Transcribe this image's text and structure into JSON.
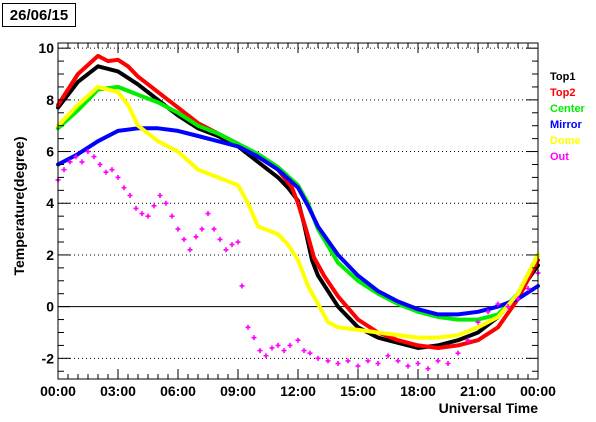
{
  "header": {
    "date": "26/06/15"
  },
  "chart_data": {
    "type": "line",
    "xlabel": "Universal Time",
    "ylabel": "Temperature(degree)",
    "xlim": [
      0,
      24
    ],
    "ylim": [
      -2.8,
      10.2
    ],
    "x_ticks": [
      {
        "value": 0,
        "label": "00:00"
      },
      {
        "value": 3,
        "label": "03:00"
      },
      {
        "value": 6,
        "label": "06:00"
      },
      {
        "value": 9,
        "label": "09:00"
      },
      {
        "value": 12,
        "label": "12:00"
      },
      {
        "value": 15,
        "label": "15:00"
      },
      {
        "value": 18,
        "label": "18:00"
      },
      {
        "value": 21,
        "label": "21:00"
      },
      {
        "value": 24,
        "label": "00:00"
      }
    ],
    "y_ticks": [
      {
        "value": -2,
        "label": "-2"
      },
      {
        "value": 0,
        "label": "0"
      },
      {
        "value": 2,
        "label": "2"
      },
      {
        "value": 4,
        "label": "4"
      },
      {
        "value": 6,
        "label": "6"
      },
      {
        "value": 8,
        "label": "8"
      },
      {
        "value": 10,
        "label": "10"
      }
    ],
    "grid": "horizontal dotted",
    "legend_position": "right",
    "series": [
      {
        "name": "Top1",
        "color": "#000000",
        "style": "line",
        "points": [
          [
            0,
            7.7
          ],
          [
            1,
            8.7
          ],
          [
            2,
            9.3
          ],
          [
            3,
            9.1
          ],
          [
            4,
            8.6
          ],
          [
            5,
            8.0
          ],
          [
            6,
            7.4
          ],
          [
            7,
            6.9
          ],
          [
            8,
            6.6
          ],
          [
            9,
            6.2
          ],
          [
            10,
            5.6
          ],
          [
            11,
            5.0
          ],
          [
            11.5,
            4.6
          ],
          [
            12,
            4.1
          ],
          [
            12.3,
            3.2
          ],
          [
            12.7,
            1.8
          ],
          [
            13,
            1.2
          ],
          [
            14,
            0.0
          ],
          [
            15,
            -0.8
          ],
          [
            16,
            -1.2
          ],
          [
            17,
            -1.4
          ],
          [
            18,
            -1.6
          ],
          [
            19,
            -1.5
          ],
          [
            20,
            -1.3
          ],
          [
            21,
            -1.0
          ],
          [
            22,
            -0.4
          ],
          [
            23,
            0.5
          ],
          [
            24,
            1.6
          ]
        ]
      },
      {
        "name": "Top2",
        "color": "#ff0000",
        "style": "line",
        "points": [
          [
            0,
            7.8
          ],
          [
            1,
            9.0
          ],
          [
            2,
            9.7
          ],
          [
            2.5,
            9.5
          ],
          [
            3,
            9.55
          ],
          [
            3.5,
            9.3
          ],
          [
            4,
            8.9
          ],
          [
            5,
            8.3
          ],
          [
            6,
            7.7
          ],
          [
            7,
            7.1
          ],
          [
            8,
            6.7
          ],
          [
            9,
            6.3
          ],
          [
            10,
            5.8
          ],
          [
            11,
            5.3
          ],
          [
            11.7,
            4.6
          ],
          [
            12,
            4.0
          ],
          [
            12.4,
            3.0
          ],
          [
            12.8,
            1.9
          ],
          [
            13.3,
            1.2
          ],
          [
            14,
            0.4
          ],
          [
            15,
            -0.5
          ],
          [
            16,
            -1.0
          ],
          [
            17,
            -1.3
          ],
          [
            18,
            -1.5
          ],
          [
            19,
            -1.6
          ],
          [
            20,
            -1.5
          ],
          [
            21,
            -1.3
          ],
          [
            22,
            -0.8
          ],
          [
            23,
            0.3
          ],
          [
            24,
            1.8
          ]
        ]
      },
      {
        "name": "Center",
        "color": "#00ee00",
        "style": "line",
        "points": [
          [
            0,
            6.9
          ],
          [
            1,
            7.6
          ],
          [
            2,
            8.4
          ],
          [
            3,
            8.5
          ],
          [
            4,
            8.2
          ],
          [
            5,
            7.9
          ],
          [
            6,
            7.5
          ],
          [
            7,
            7.0
          ],
          [
            8,
            6.7
          ],
          [
            9,
            6.3
          ],
          [
            10,
            5.9
          ],
          [
            11,
            5.4
          ],
          [
            12,
            4.7
          ],
          [
            12.5,
            4.0
          ],
          [
            13,
            3.0
          ],
          [
            14,
            1.7
          ],
          [
            15,
            1.0
          ],
          [
            16,
            0.5
          ],
          [
            17,
            0.1
          ],
          [
            18,
            -0.2
          ],
          [
            19,
            -0.4
          ],
          [
            20,
            -0.5
          ],
          [
            21,
            -0.5
          ],
          [
            22,
            -0.3
          ],
          [
            23,
            0.5
          ],
          [
            24,
            2.0
          ]
        ]
      },
      {
        "name": "Mirror",
        "color": "#0000ff",
        "style": "line",
        "points": [
          [
            0,
            5.5
          ],
          [
            1,
            5.9
          ],
          [
            2,
            6.4
          ],
          [
            3,
            6.8
          ],
          [
            4,
            6.9
          ],
          [
            5,
            6.9
          ],
          [
            6,
            6.8
          ],
          [
            7,
            6.6
          ],
          [
            8,
            6.4
          ],
          [
            9,
            6.2
          ],
          [
            10,
            5.8
          ],
          [
            11,
            5.3
          ],
          [
            12,
            4.6
          ],
          [
            12.5,
            3.9
          ],
          [
            13,
            3.1
          ],
          [
            14,
            2.0
          ],
          [
            15,
            1.2
          ],
          [
            16,
            0.6
          ],
          [
            17,
            0.2
          ],
          [
            18,
            -0.1
          ],
          [
            19,
            -0.3
          ],
          [
            20,
            -0.3
          ],
          [
            21,
            -0.2
          ],
          [
            22,
            0.0
          ],
          [
            23,
            0.3
          ],
          [
            24,
            0.8
          ]
        ]
      },
      {
        "name": "Dome",
        "color": "#ffff00",
        "style": "line",
        "points": [
          [
            0,
            7.0
          ],
          [
            1,
            7.8
          ],
          [
            2,
            8.5
          ],
          [
            3,
            8.3
          ],
          [
            3.5,
            7.8
          ],
          [
            4,
            7.0
          ],
          [
            5,
            6.4
          ],
          [
            6,
            6.0
          ],
          [
            7,
            5.3
          ],
          [
            8,
            5.0
          ],
          [
            9,
            4.7
          ],
          [
            9.5,
            4.0
          ],
          [
            10,
            3.1
          ],
          [
            11,
            2.8
          ],
          [
            11.5,
            2.4
          ],
          [
            12,
            1.8
          ],
          [
            12.5,
            0.8
          ],
          [
            13,
            0.1
          ],
          [
            13.5,
            -0.6
          ],
          [
            14,
            -0.8
          ],
          [
            15,
            -0.9
          ],
          [
            16,
            -1.0
          ],
          [
            17,
            -1.1
          ],
          [
            18,
            -1.2
          ],
          [
            19,
            -1.2
          ],
          [
            20,
            -1.1
          ],
          [
            21,
            -0.8
          ],
          [
            22,
            -0.4
          ],
          [
            23,
            0.5
          ],
          [
            24,
            2.0
          ]
        ]
      },
      {
        "name": "Out",
        "color": "#ff00ff",
        "style": "markers",
        "points": [
          [
            0,
            4.9
          ],
          [
            0.3,
            5.3
          ],
          [
            0.6,
            5.6
          ],
          [
            0.9,
            5.8
          ],
          [
            1.2,
            5.6
          ],
          [
            1.5,
            6.0
          ],
          [
            1.8,
            5.8
          ],
          [
            2.1,
            5.5
          ],
          [
            2.4,
            5.2
          ],
          [
            2.7,
            5.3
          ],
          [
            3.0,
            5.0
          ],
          [
            3.3,
            4.6
          ],
          [
            3.6,
            4.3
          ],
          [
            3.9,
            3.8
          ],
          [
            4.2,
            3.6
          ],
          [
            4.5,
            3.5
          ],
          [
            4.8,
            3.9
          ],
          [
            5.1,
            4.3
          ],
          [
            5.4,
            4.0
          ],
          [
            5.7,
            3.5
          ],
          [
            6.0,
            3.0
          ],
          [
            6.3,
            2.6
          ],
          [
            6.6,
            2.2
          ],
          [
            6.9,
            2.7
          ],
          [
            7.2,
            3.0
          ],
          [
            7.5,
            3.6
          ],
          [
            7.8,
            3.0
          ],
          [
            8.1,
            2.6
          ],
          [
            8.4,
            2.2
          ],
          [
            8.7,
            2.4
          ],
          [
            9.0,
            2.5
          ],
          [
            9.2,
            0.8
          ],
          [
            9.5,
            -0.8
          ],
          [
            9.8,
            -1.2
          ],
          [
            10.1,
            -1.7
          ],
          [
            10.4,
            -1.9
          ],
          [
            10.7,
            -1.6
          ],
          [
            11.0,
            -1.5
          ],
          [
            11.3,
            -1.7
          ],
          [
            11.6,
            -1.5
          ],
          [
            12.0,
            -1.3
          ],
          [
            12.3,
            -1.7
          ],
          [
            12.6,
            -1.8
          ],
          [
            13.0,
            -2.0
          ],
          [
            13.5,
            -2.1
          ],
          [
            14.0,
            -2.2
          ],
          [
            14.5,
            -2.1
          ],
          [
            15.0,
            -2.3
          ],
          [
            15.5,
            -2.1
          ],
          [
            16.0,
            -2.2
          ],
          [
            16.5,
            -1.9
          ],
          [
            17.0,
            -2.1
          ],
          [
            17.5,
            -2.3
          ],
          [
            18.0,
            -2.2
          ],
          [
            18.5,
            -2.4
          ],
          [
            19.0,
            -2.1
          ],
          [
            19.5,
            -2.2
          ],
          [
            20.0,
            -1.8
          ],
          [
            20.5,
            -1.3
          ],
          [
            21.0,
            -0.6
          ],
          [
            21.5,
            -0.2
          ],
          [
            22.0,
            0.1
          ],
          [
            22.5,
            0.0
          ],
          [
            23.0,
            0.3
          ],
          [
            23.5,
            0.7
          ],
          [
            24.0,
            1.3
          ]
        ]
      }
    ]
  }
}
